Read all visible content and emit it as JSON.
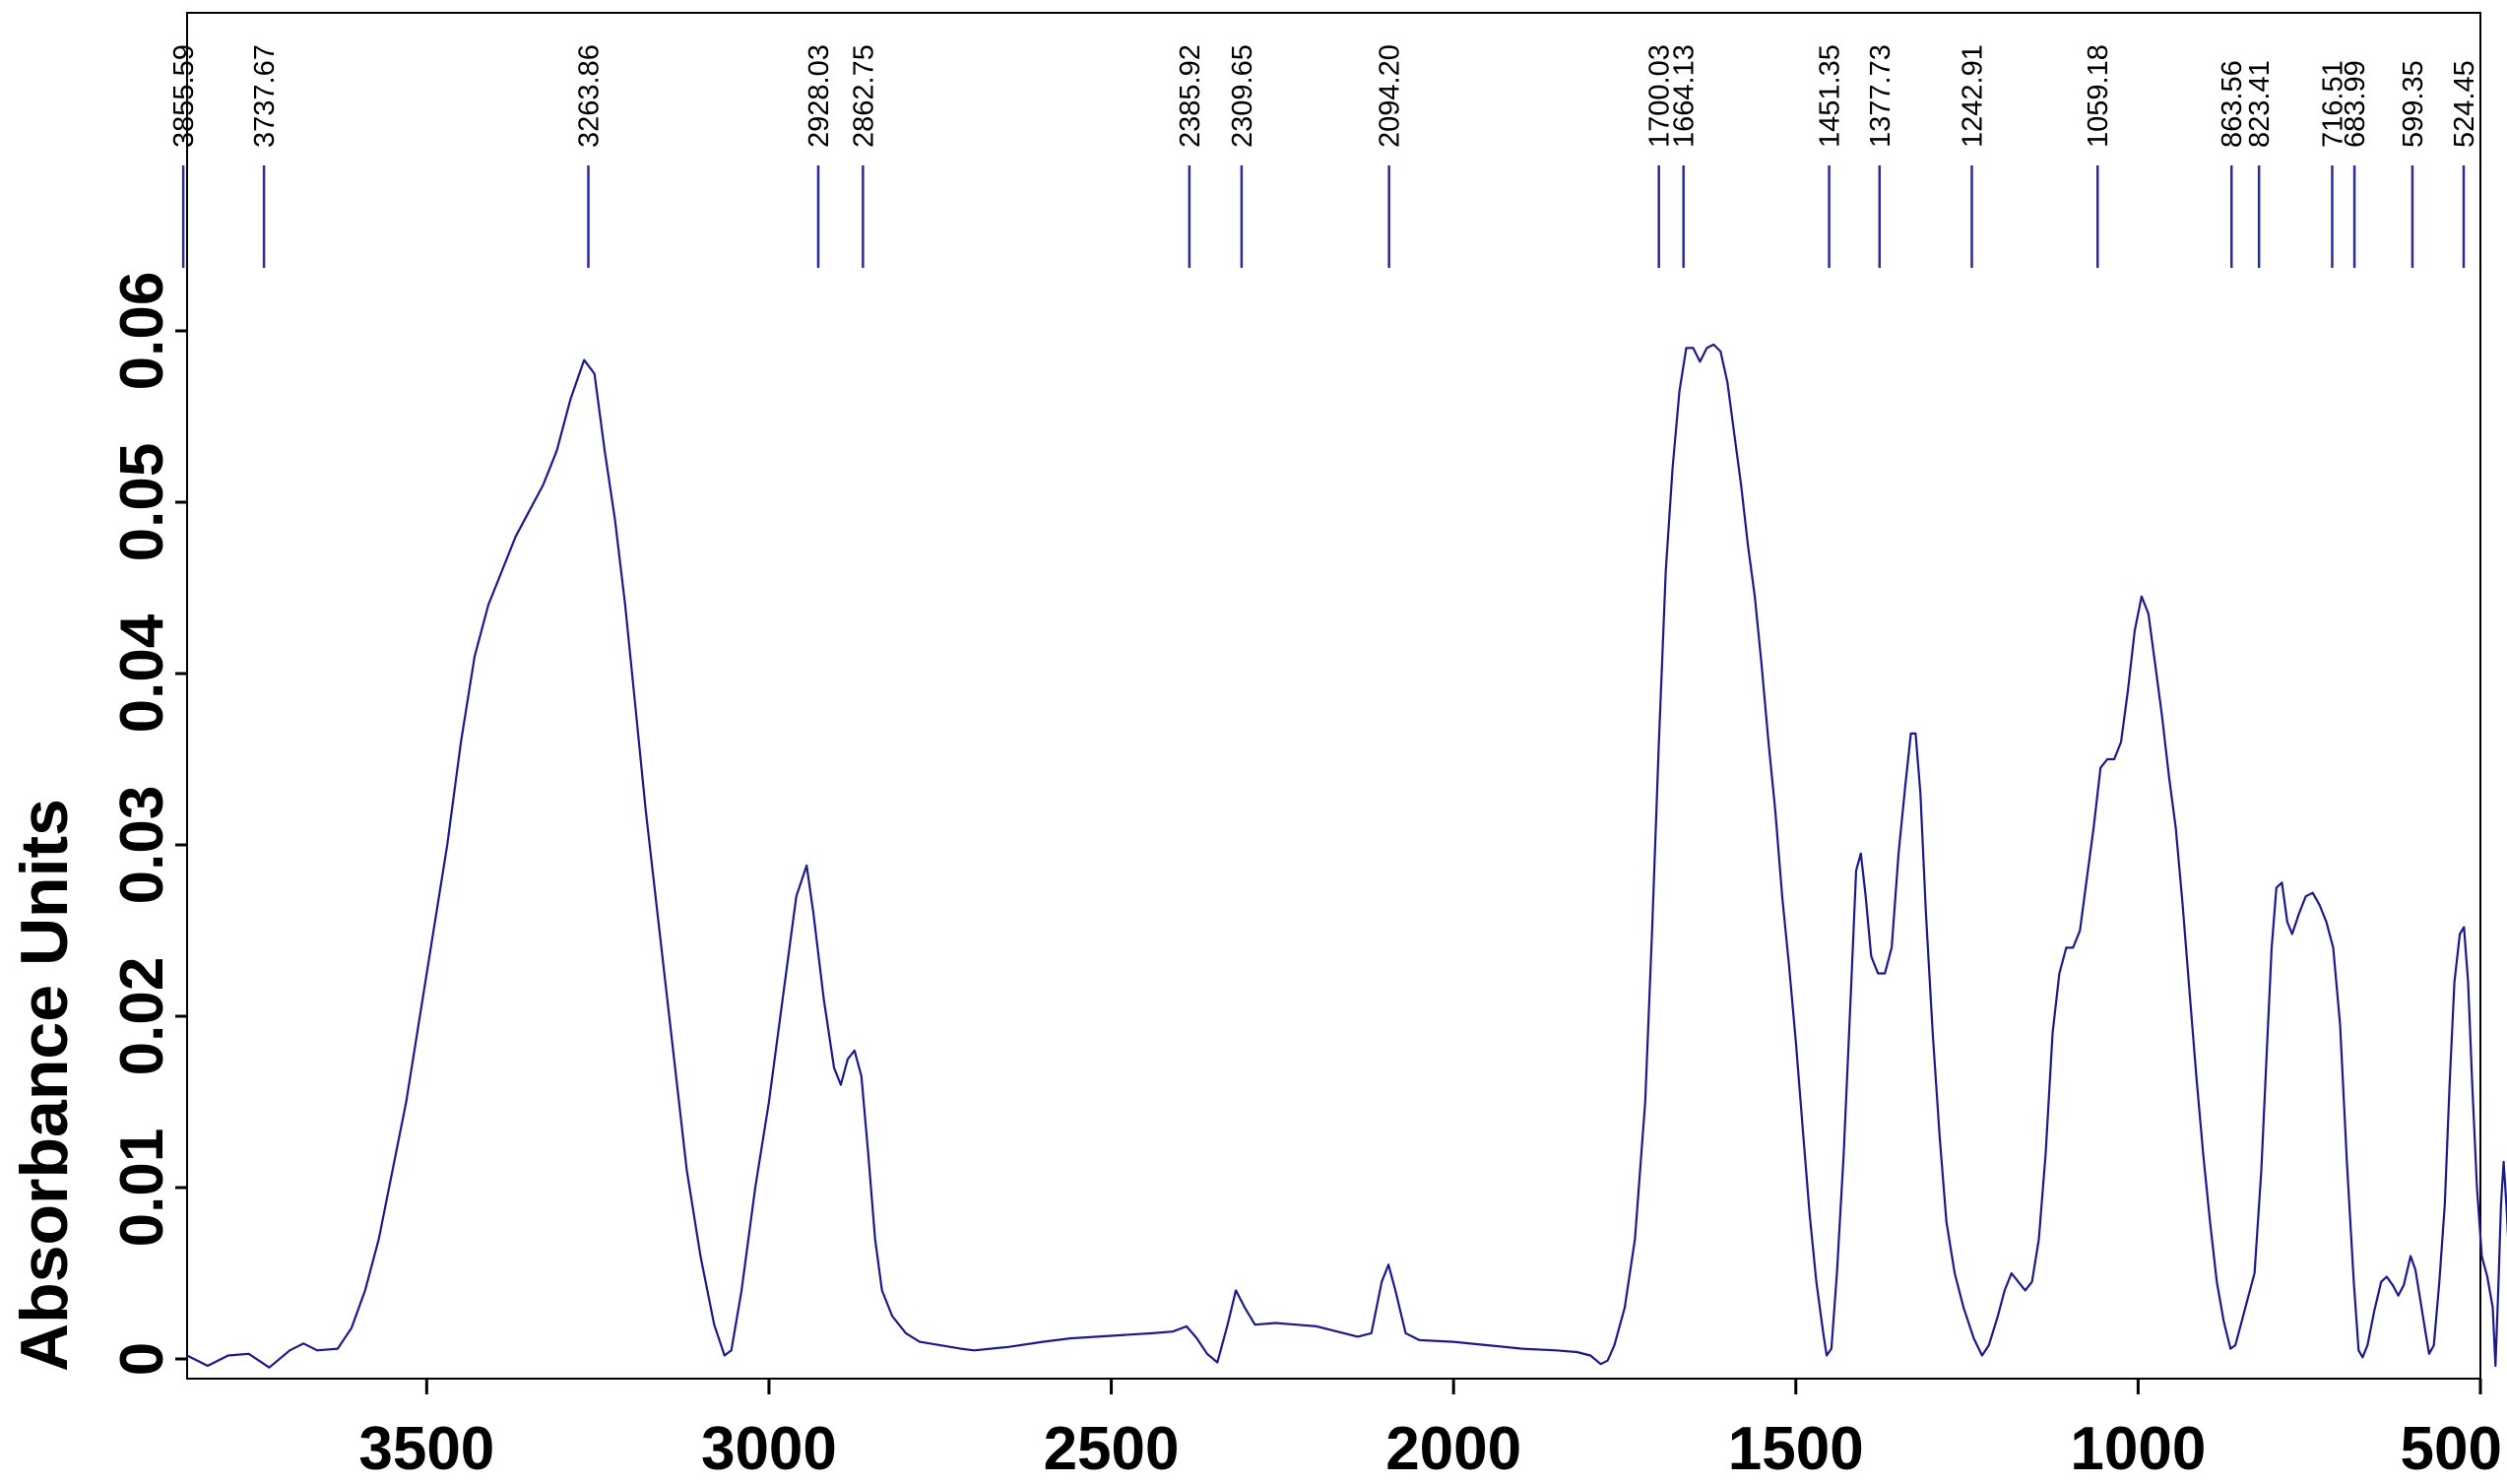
{
  "chart_data": {
    "type": "line",
    "title": "",
    "xlabel": "",
    "ylabel": "Absorbance Units",
    "xlim": [
      3850,
      500
    ],
    "ylim": [
      -0.001,
      0.07
    ],
    "x_reversed": true,
    "grid": false,
    "legend": "none",
    "line_color": "#1a1a8c",
    "peak_marker_color": "#2a2aa0",
    "x_ticks": [
      {
        "value": 3500,
        "label": "3500"
      },
      {
        "value": 3000,
        "label": "3000"
      },
      {
        "value": 2500,
        "label": "2500"
      },
      {
        "value": 2000,
        "label": "2000"
      },
      {
        "value": 1500,
        "label": "1500"
      },
      {
        "value": 1000,
        "label": "1000"
      },
      {
        "value": 500,
        "label": "500"
      }
    ],
    "y_ticks": [
      {
        "value": 0,
        "label": "0"
      },
      {
        "value": 0.01,
        "label": "0.01"
      },
      {
        "value": 0.02,
        "label": "0.02"
      },
      {
        "value": 0.03,
        "label": "0.03"
      },
      {
        "value": 0.04,
        "label": "0.04"
      },
      {
        "value": 0.05,
        "label": "0.05"
      },
      {
        "value": 0.06,
        "label": "0.06"
      }
    ],
    "peaks": [
      {
        "x": 3855.59,
        "label": "3855.59"
      },
      {
        "x": 3737.67,
        "label": "3737.67"
      },
      {
        "x": 3263.86,
        "label": "3263.86"
      },
      {
        "x": 2928.03,
        "label": "2928.03"
      },
      {
        "x": 2862.75,
        "label": "2862.75"
      },
      {
        "x": 2385.92,
        "label": "2385.92"
      },
      {
        "x": 2309.65,
        "label": "2309.65"
      },
      {
        "x": 2094.2,
        "label": "2094.20"
      },
      {
        "x": 1700.03,
        "label": "1700.03"
      },
      {
        "x": 1664.13,
        "label": "1664.13"
      },
      {
        "x": 1451.35,
        "label": "1451.35"
      },
      {
        "x": 1377.73,
        "label": "1377.73"
      },
      {
        "x": 1242.91,
        "label": "1242.91"
      },
      {
        "x": 1059.18,
        "label": "1059.18"
      },
      {
        "x": 863.56,
        "label": "863.56"
      },
      {
        "x": 823.41,
        "label": "823.41"
      },
      {
        "x": 716.51,
        "label": "716.51"
      },
      {
        "x": 683.99,
        "label": "683.99"
      },
      {
        "x": 599.35,
        "label": "599.35"
      },
      {
        "x": 524.45,
        "label": "524.45"
      }
    ],
    "series": [
      {
        "points": [
          [
            3850,
            0.0002
          ],
          [
            3820,
            -0.0004
          ],
          [
            3790,
            0.0002
          ],
          [
            3760,
            0.0003
          ],
          [
            3730,
            -0.0005
          ],
          [
            3700,
            0.0005
          ],
          [
            3680,
            0.0009
          ],
          [
            3660,
            0.0005
          ],
          [
            3630,
            0.0006
          ],
          [
            3610,
            0.0018
          ],
          [
            3590,
            0.004
          ],
          [
            3570,
            0.007
          ],
          [
            3550,
            0.011
          ],
          [
            3530,
            0.015
          ],
          [
            3510,
            0.02
          ],
          [
            3490,
            0.025
          ],
          [
            3470,
            0.03
          ],
          [
            3450,
            0.036
          ],
          [
            3430,
            0.041
          ],
          [
            3410,
            0.044
          ],
          [
            3390,
            0.046
          ],
          [
            3370,
            0.048
          ],
          [
            3350,
            0.0495
          ],
          [
            3330,
            0.051
          ],
          [
            3310,
            0.053
          ],
          [
            3290,
            0.056
          ],
          [
            3270,
            0.0583
          ],
          [
            3255,
            0.0575
          ],
          [
            3240,
            0.053
          ],
          [
            3225,
            0.049
          ],
          [
            3210,
            0.044
          ],
          [
            3195,
            0.038
          ],
          [
            3180,
            0.032
          ],
          [
            3160,
            0.025
          ],
          [
            3140,
            0.018
          ],
          [
            3120,
            0.011
          ],
          [
            3100,
            0.006
          ],
          [
            3080,
            0.002
          ],
          [
            3065,
            0.0002
          ],
          [
            3055,
            0.0005
          ],
          [
            3040,
            0.004
          ],
          [
            3020,
            0.01
          ],
          [
            3000,
            0.015
          ],
          [
            2980,
            0.021
          ],
          [
            2960,
            0.027
          ],
          [
            2945,
            0.0288
          ],
          [
            2935,
            0.026
          ],
          [
            2920,
            0.021
          ],
          [
            2905,
            0.017
          ],
          [
            2895,
            0.016
          ],
          [
            2885,
            0.0175
          ],
          [
            2875,
            0.018
          ],
          [
            2865,
            0.0165
          ],
          [
            2855,
            0.012
          ],
          [
            2845,
            0.007
          ],
          [
            2835,
            0.004
          ],
          [
            2820,
            0.0025
          ],
          [
            2800,
            0.0015
          ],
          [
            2780,
            0.001
          ],
          [
            2750,
            0.0008
          ],
          [
            2720,
            0.0006
          ],
          [
            2700,
            0.0005
          ],
          [
            2650,
            0.0007
          ],
          [
            2600,
            0.001
          ],
          [
            2560,
            0.0012
          ],
          [
            2520,
            0.0013
          ],
          [
            2480,
            0.0014
          ],
          [
            2440,
            0.0015
          ],
          [
            2410,
            0.0016
          ],
          [
            2390,
            0.0019
          ],
          [
            2375,
            0.0012
          ],
          [
            2360,
            0.0003
          ],
          [
            2345,
            -0.0002
          ],
          [
            2330,
            0.002
          ],
          [
            2318,
            0.004
          ],
          [
            2305,
            0.003
          ],
          [
            2290,
            0.002
          ],
          [
            2260,
            0.0021
          ],
          [
            2230,
            0.002
          ],
          [
            2200,
            0.0019
          ],
          [
            2170,
            0.0016
          ],
          [
            2140,
            0.0013
          ],
          [
            2120,
            0.0015
          ],
          [
            2105,
            0.0045
          ],
          [
            2095,
            0.0055
          ],
          [
            2085,
            0.004
          ],
          [
            2070,
            0.0015
          ],
          [
            2050,
            0.0011
          ],
          [
            2000,
            0.001
          ],
          [
            1950,
            0.0008
          ],
          [
            1900,
            0.0006
          ],
          [
            1850,
            0.0005
          ],
          [
            1820,
            0.0004
          ],
          [
            1800,
            0.0002
          ],
          [
            1785,
            -0.0003
          ],
          [
            1775,
            -0.0001
          ],
          [
            1765,
            0.0008
          ],
          [
            1750,
            0.003
          ],
          [
            1735,
            0.007
          ],
          [
            1720,
            0.015
          ],
          [
            1710,
            0.025
          ],
          [
            1700,
            0.036
          ],
          [
            1690,
            0.046
          ],
          [
            1680,
            0.052
          ],
          [
            1670,
            0.0565
          ],
          [
            1660,
            0.059
          ],
          [
            1650,
            0.059
          ],
          [
            1640,
            0.0582
          ],
          [
            1630,
            0.059
          ],
          [
            1620,
            0.0592
          ],
          [
            1610,
            0.0588
          ],
          [
            1600,
            0.057
          ],
          [
            1590,
            0.054
          ],
          [
            1580,
            0.051
          ],
          [
            1570,
            0.0475
          ],
          [
            1560,
            0.0445
          ],
          [
            1550,
            0.0405
          ],
          [
            1540,
            0.036
          ],
          [
            1530,
            0.032
          ],
          [
            1520,
            0.027
          ],
          [
            1510,
            0.023
          ],
          [
            1500,
            0.0185
          ],
          [
            1490,
            0.0135
          ],
          [
            1480,
            0.0085
          ],
          [
            1470,
            0.0045
          ],
          [
            1460,
            0.0015
          ],
          [
            1455,
            0.0002
          ],
          [
            1448,
            0.0006
          ],
          [
            1440,
            0.005
          ],
          [
            1430,
            0.012
          ],
          [
            1420,
            0.021
          ],
          [
            1412,
            0.0285
          ],
          [
            1405,
            0.0295
          ],
          [
            1398,
            0.027
          ],
          [
            1390,
            0.0235
          ],
          [
            1380,
            0.0225
          ],
          [
            1370,
            0.0225
          ],
          [
            1360,
            0.024
          ],
          [
            1350,
            0.0295
          ],
          [
            1340,
            0.0335
          ],
          [
            1332,
            0.0365
          ],
          [
            1325,
            0.0365
          ],
          [
            1318,
            0.033
          ],
          [
            1310,
            0.026
          ],
          [
            1300,
            0.019
          ],
          [
            1290,
            0.013
          ],
          [
            1280,
            0.008
          ],
          [
            1268,
            0.005
          ],
          [
            1255,
            0.003
          ],
          [
            1240,
            0.0012
          ],
          [
            1228,
            0.0002
          ],
          [
            1218,
            0.0008
          ],
          [
            1205,
            0.0025
          ],
          [
            1195,
            0.004
          ],
          [
            1185,
            0.005
          ],
          [
            1175,
            0.0045
          ],
          [
            1165,
            0.004
          ],
          [
            1155,
            0.0045
          ],
          [
            1145,
            0.007
          ],
          [
            1135,
            0.012
          ],
          [
            1125,
            0.019
          ],
          [
            1115,
            0.0225
          ],
          [
            1105,
            0.024
          ],
          [
            1095,
            0.024
          ],
          [
            1085,
            0.025
          ],
          [
            1075,
            0.028
          ],
          [
            1065,
            0.031
          ],
          [
            1055,
            0.0345
          ],
          [
            1045,
            0.035
          ],
          [
            1035,
            0.035
          ],
          [
            1025,
            0.036
          ],
          [
            1015,
            0.039
          ],
          [
            1005,
            0.0425
          ],
          [
            995,
            0.0445
          ],
          [
            985,
            0.0435
          ],
          [
            975,
            0.0405
          ],
          [
            965,
            0.0375
          ],
          [
            955,
            0.034
          ],
          [
            945,
            0.031
          ],
          [
            935,
            0.0265
          ],
          [
            925,
            0.0215
          ],
          [
            915,
            0.0165
          ],
          [
            905,
            0.012
          ],
          [
            895,
            0.008
          ],
          [
            885,
            0.0045
          ],
          [
            875,
            0.0022
          ],
          [
            865,
            0.0006
          ],
          [
            858,
            0.0008
          ],
          [
            850,
            0.002
          ],
          [
            840,
            0.0035
          ],
          [
            830,
            0.005
          ],
          [
            820,
            0.011
          ],
          [
            812,
            0.018
          ],
          [
            805,
            0.024
          ],
          [
            798,
            0.0275
          ],
          [
            790,
            0.0278
          ],
          [
            782,
            0.0255
          ],
          [
            775,
            0.0248
          ],
          [
            765,
            0.026
          ],
          [
            755,
            0.027
          ],
          [
            745,
            0.0272
          ],
          [
            735,
            0.0265
          ],
          [
            725,
            0.0255
          ],
          [
            715,
            0.024
          ],
          [
            705,
            0.0195
          ],
          [
            695,
            0.0115
          ],
          [
            685,
            0.0045
          ],
          [
            678,
            0.0005
          ],
          [
            672,
            0.0001
          ],
          [
            665,
            0.0008
          ],
          [
            655,
            0.0028
          ],
          [
            645,
            0.0045
          ],
          [
            637,
            0.0048
          ],
          [
            628,
            0.0043
          ],
          [
            620,
            0.0037
          ],
          [
            612,
            0.0043
          ],
          [
            602,
            0.006
          ],
          [
            595,
            0.0052
          ],
          [
            588,
            0.0035
          ],
          [
            580,
            0.0015
          ],
          [
            575,
            0.0003
          ],
          [
            568,
            0.0008
          ],
          [
            560,
            0.0045
          ],
          [
            552,
            0.009
          ],
          [
            545,
            0.016
          ],
          [
            538,
            0.022
          ],
          [
            530,
            0.0248
          ],
          [
            524,
            0.0252
          ],
          [
            518,
            0.022
          ],
          [
            512,
            0.016
          ],
          [
            505,
            0.01
          ],
          [
            498,
            0.006
          ],
          [
            490,
            0.0048
          ],
          [
            482,
            0.003
          ],
          [
            478,
            -0.0004
          ],
          [
            474,
            0.004
          ],
          [
            470,
            0.009
          ],
          [
            466,
            0.0115
          ],
          [
            462,
            0.009
          ],
          [
            458,
            0.0058
          ],
          [
            454,
            0.003
          ],
          [
            450,
            0.0003
          ]
        ]
      }
    ]
  }
}
